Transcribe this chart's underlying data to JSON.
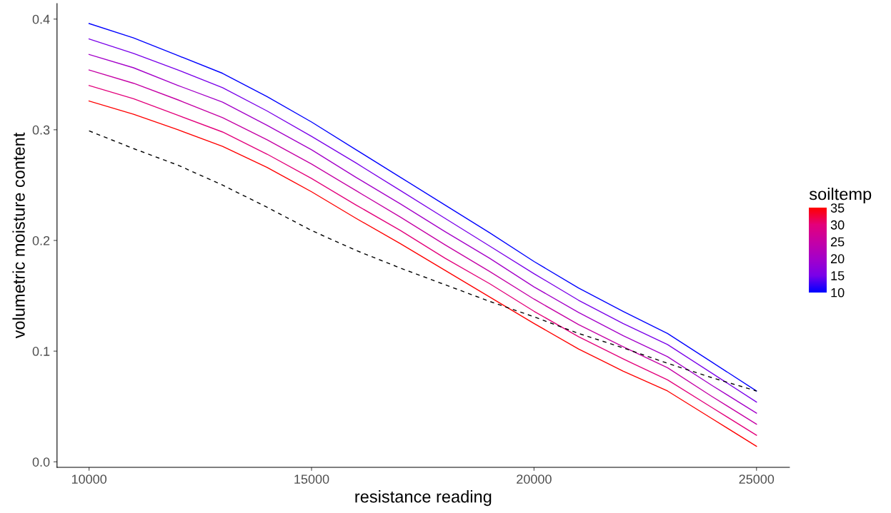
{
  "chart_data": {
    "type": "line",
    "xlabel": "resistance reading",
    "ylabel": "volumetric moisture content",
    "clabel": "soiltemp",
    "x": [
      10000,
      11000,
      12000,
      13000,
      14000,
      15000,
      16000,
      17000,
      18000,
      19000,
      20000,
      21000,
      22000,
      23000,
      24000,
      25000
    ],
    "series": [
      {
        "color": "#0000ff",
        "values": [
          0.396,
          0.383,
          0.367,
          0.351,
          0.33,
          0.307,
          0.282,
          0.257,
          0.232,
          0.207,
          0.181,
          0.157,
          0.136,
          0.116,
          0.09,
          0.064
        ]
      },
      {
        "color": "#7a00e9",
        "values": [
          0.382,
          0.369,
          0.354,
          0.338,
          0.317,
          0.294,
          0.27,
          0.245,
          0.22,
          0.195,
          0.17,
          0.146,
          0.125,
          0.106,
          0.08,
          0.054
        ]
      },
      {
        "color": "#a400c9",
        "values": [
          0.368,
          0.356,
          0.34,
          0.325,
          0.304,
          0.282,
          0.257,
          0.233,
          0.208,
          0.184,
          0.158,
          0.135,
          0.114,
          0.095,
          0.069,
          0.044
        ]
      },
      {
        "color": "#c500a5",
        "values": [
          0.354,
          0.342,
          0.327,
          0.311,
          0.291,
          0.269,
          0.245,
          0.221,
          0.196,
          0.172,
          0.147,
          0.124,
          0.104,
          0.085,
          0.059,
          0.034
        ]
      },
      {
        "color": "#e3007b",
        "values": [
          0.34,
          0.328,
          0.313,
          0.298,
          0.278,
          0.256,
          0.232,
          0.209,
          0.184,
          0.161,
          0.136,
          0.113,
          0.093,
          0.074,
          0.049,
          0.024
        ]
      },
      {
        "color": "#ff0000",
        "values": [
          0.326,
          0.314,
          0.3,
          0.285,
          0.266,
          0.244,
          0.22,
          0.197,
          0.173,
          0.149,
          0.125,
          0.102,
          0.082,
          0.064,
          0.039,
          0.014
        ]
      },
      {
        "color": "#000000",
        "line_style": "dashed",
        "values": [
          0.299,
          0.283,
          0.268,
          0.25,
          0.23,
          0.209,
          0.191,
          0.175,
          0.16,
          0.145,
          0.131,
          0.116,
          0.103,
          0.089,
          0.076,
          0.064
        ]
      }
    ],
    "xlim": [
      9280,
      25740
    ],
    "xticks": [
      10000,
      15000,
      20000,
      25000
    ],
    "ylim": [
      -0.005,
      0.414
    ],
    "yticks": [
      {
        "value": 0,
        "label": "0.0"
      },
      0.1,
      0.2,
      0.3,
      0.4
    ],
    "clim": [
      10,
      35
    ],
    "cticks": [
      10,
      15,
      20,
      25,
      30,
      35
    ],
    "grid": false
  }
}
